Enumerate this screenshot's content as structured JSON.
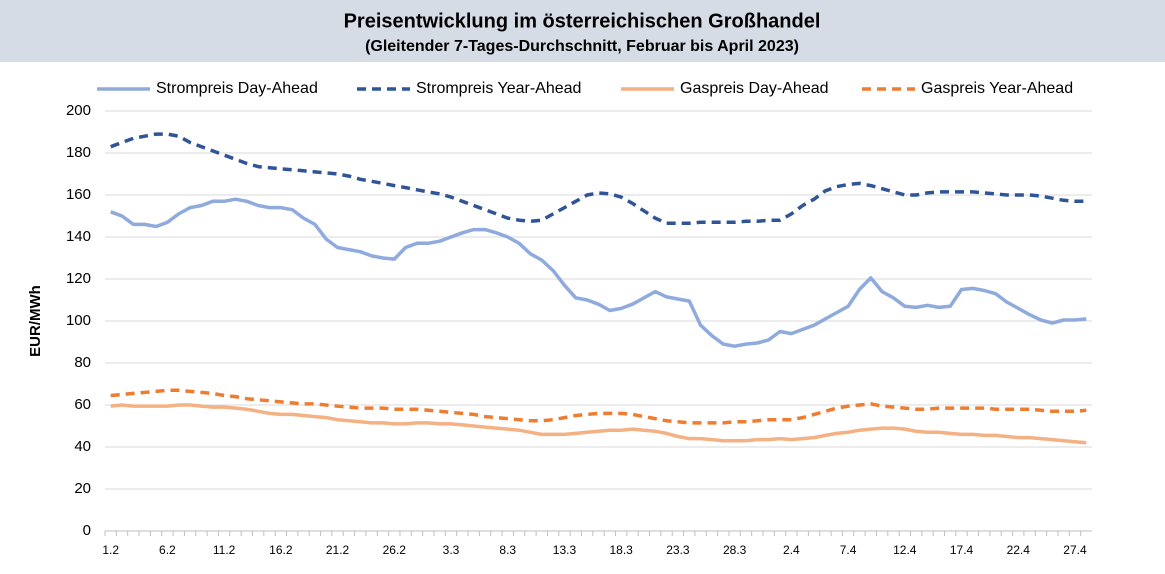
{
  "chart_data": {
    "type": "line",
    "title": "Preisentwicklung im österreichischen Großhandel",
    "subtitle": "(Gleitender 7-Tages-Durchschnitt, Februar bis April 2023)",
    "y_label": "EUR/MWh",
    "categories": [
      "1.2",
      null,
      null,
      null,
      null,
      "6.2",
      null,
      null,
      null,
      null,
      "11.2",
      null,
      null,
      null,
      null,
      "16.2",
      null,
      null,
      null,
      null,
      "21.2",
      null,
      null,
      null,
      null,
      "26.2",
      null,
      null,
      null,
      null,
      "3.3",
      null,
      null,
      null,
      null,
      "8.3",
      null,
      null,
      null,
      null,
      "13.3",
      null,
      null,
      null,
      null,
      "18.3",
      null,
      null,
      null,
      null,
      "23.3",
      null,
      null,
      null,
      null,
      "28.3",
      null,
      null,
      null,
      null,
      "2.4",
      null,
      null,
      null,
      null,
      "7.4",
      null,
      null,
      null,
      null,
      "12.4",
      null,
      null,
      null,
      null,
      "17.4",
      null,
      null,
      null,
      null,
      "22.4",
      null,
      null,
      null,
      null,
      "27.4",
      null
    ],
    "ylim": [
      0,
      200
    ],
    "yticks": [
      0,
      20,
      40,
      60,
      80,
      100,
      120,
      140,
      160,
      180,
      200
    ],
    "grid": true,
    "legend": "top",
    "series": [
      {
        "name": "Strompreis Day-Ahead",
        "color": "#8faadc",
        "dashed": false,
        "values": [
          152,
          150,
          146,
          146,
          145,
          147,
          151,
          154,
          155,
          157,
          157,
          158,
          157,
          155,
          154,
          154,
          153,
          149,
          146,
          139,
          135,
          134,
          133,
          131,
          130,
          129.5,
          135,
          137,
          137,
          138,
          140,
          142,
          143.5,
          143.5,
          142,
          140,
          137,
          132,
          129,
          124,
          117,
          111,
          110,
          108,
          105,
          106,
          108,
          111,
          114,
          111.5,
          110.5,
          109.5,
          98,
          93,
          89,
          88,
          89,
          89.5,
          91,
          95,
          94,
          96,
          98,
          101,
          104,
          107,
          115,
          120.5,
          114,
          111,
          107,
          106.5,
          107.5,
          106.5,
          107,
          115,
          115.5,
          114.5,
          113,
          109,
          106,
          103,
          100.5,
          99,
          100.5,
          100.5,
          101
        ]
      },
      {
        "name": "Strompreis Year-Ahead",
        "color": "#2f5597",
        "dashed": true,
        "values": [
          183,
          185,
          187,
          188,
          189,
          189,
          188,
          185,
          183,
          181,
          179,
          177,
          175,
          173.5,
          173,
          172.5,
          172,
          171.5,
          171,
          170.5,
          170,
          169,
          167.5,
          166.5,
          165.5,
          164.5,
          163.5,
          162.5,
          161.5,
          160.5,
          159,
          157,
          155,
          153,
          151,
          149,
          148,
          147.5,
          148,
          151,
          154,
          157,
          160,
          161,
          160.5,
          159,
          156,
          152.5,
          149,
          146.5,
          146.5,
          146.5,
          147,
          147,
          147,
          147,
          147.5,
          147.5,
          148,
          148,
          151,
          155,
          158,
          162,
          164,
          165,
          165.5,
          164.5,
          163,
          161.5,
          160,
          160,
          161,
          161.5,
          161.5,
          161.5,
          161.5,
          161,
          160.5,
          160,
          160,
          160,
          159.5,
          158.5,
          157.5,
          157,
          157
        ]
      },
      {
        "name": "Gaspreis Day-Ahead",
        "color": "#f4b183",
        "dashed": false,
        "values": [
          59.5,
          60,
          59.5,
          59.5,
          59.5,
          59.5,
          60,
          60,
          59.5,
          59,
          59,
          58.5,
          58,
          57,
          56,
          55.5,
          55.5,
          55,
          54.5,
          54,
          53,
          52.5,
          52,
          51.5,
          51.5,
          51,
          51,
          51.5,
          51.5,
          51,
          51,
          50.5,
          50,
          49.5,
          49,
          48.5,
          48,
          47,
          46,
          46,
          46,
          46.5,
          47,
          47.5,
          48,
          48,
          48.5,
          48,
          47.5,
          46.5,
          45,
          44,
          44,
          43.5,
          43,
          43,
          43,
          43.5,
          43.5,
          44,
          43.5,
          44,
          44.5,
          45.5,
          46.5,
          47,
          48,
          48.5,
          49,
          49,
          48.5,
          47.5,
          47,
          47,
          46.5,
          46,
          46,
          45.5,
          45.5,
          45,
          44.5,
          44.5,
          44,
          43.5,
          43,
          42.5,
          42
        ]
      },
      {
        "name": "Gaspreis Year-Ahead",
        "color": "#ed7d31",
        "dashed": true,
        "values": [
          64.5,
          65,
          65.5,
          66,
          66.5,
          67,
          67,
          66.5,
          66,
          65.5,
          64.5,
          64,
          63,
          62.5,
          62,
          61.5,
          61,
          60.5,
          60.5,
          60,
          59.5,
          59,
          58.5,
          58.5,
          58.5,
          58,
          58,
          58,
          57.5,
          57,
          56.5,
          56,
          55.5,
          54.5,
          54,
          53.5,
          53,
          52.5,
          52.5,
          53,
          54,
          55,
          55.5,
          56,
          56,
          56,
          55.5,
          54.5,
          53.5,
          52.5,
          52,
          51.5,
          51.5,
          51.5,
          51.5,
          52,
          52,
          52.5,
          53,
          53,
          53,
          54,
          55.5,
          57,
          58.5,
          59.5,
          60,
          60.5,
          59.5,
          59,
          58.5,
          58,
          58,
          58.5,
          58.5,
          58.5,
          58.5,
          58.5,
          58,
          58,
          58,
          58,
          57.5,
          57,
          57,
          57,
          57.5
        ]
      }
    ]
  }
}
